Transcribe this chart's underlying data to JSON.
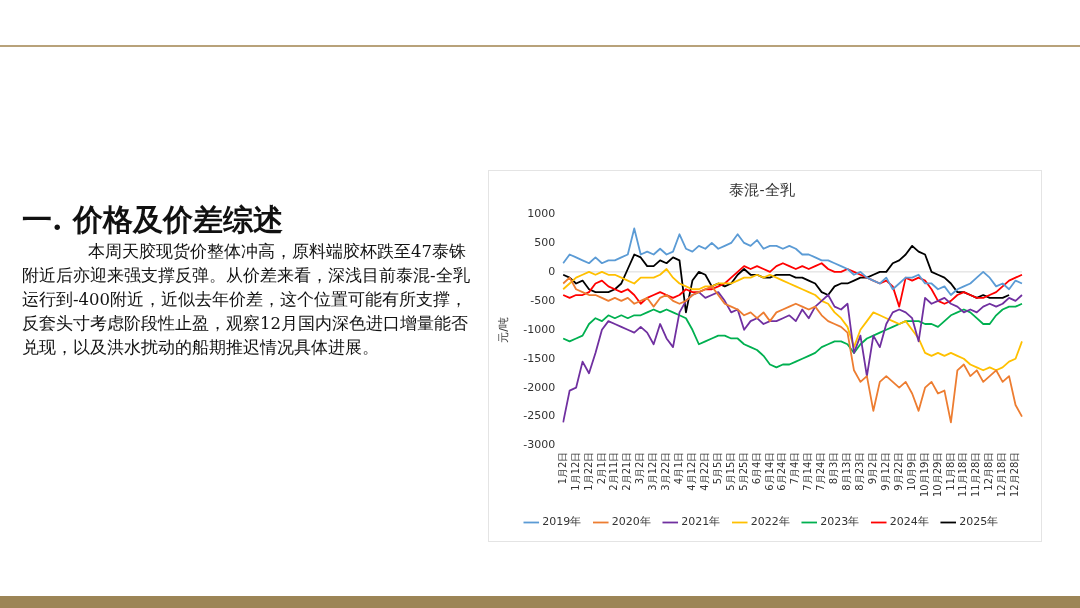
{
  "chart_data": {
    "type": "line",
    "title": "泰混-全乳",
    "ylabel": "元/吨",
    "annotations": [
      "一. 价格及价差综述",
      "本周天胶现货价整体冲高，原料端胶杯跌至47泰铢附近后亦迎来强支撑反弹。从价差来看，深浅目前泰混-全乳运行到-400附近，近似去年价差，这个位置可能有所支撑，反套头寸考虑阶段性止盈，观察12月国内深色进口增量能否兑现，以及洪水扰动的船期推迟情况具体进展。"
    ],
    "categories": [
      "1月2日",
      null,
      "1月12日",
      null,
      "1月22日",
      null,
      "2月1日",
      null,
      "2月11日",
      null,
      "2月21日",
      null,
      "3月2日",
      null,
      "3月12日",
      null,
      "3月22日",
      null,
      "4月1日",
      null,
      "4月12日",
      null,
      "4月22日",
      null,
      "5月5日",
      null,
      "5月15日",
      null,
      "5月25日",
      null,
      "6月4日",
      null,
      "6月14日",
      null,
      "6月24日",
      null,
      "7月4日",
      null,
      "7月14日",
      null,
      "7月24日",
      null,
      "8月3日",
      null,
      "8月13日",
      null,
      "8月23日",
      null,
      "9月2日",
      null,
      "9月12日",
      null,
      "9月22日",
      null,
      "10月9日",
      null,
      "10月19日",
      null,
      "10月29日",
      null,
      "11月8日",
      null,
      "11月18日",
      null,
      "11月28日",
      null,
      "12月8日",
      null,
      "12月18日",
      null,
      "12月28日",
      null
    ],
    "series": [
      {
        "name": "2019年",
        "color": "#5b9bd5",
        "values": [
          150,
          300,
          250,
          200,
          150,
          250,
          150,
          200,
          200,
          250,
          300,
          750,
          300,
          350,
          300,
          400,
          300,
          350,
          650,
          400,
          350,
          450,
          400,
          500,
          400,
          450,
          500,
          650,
          500,
          450,
          550,
          400,
          450,
          450,
          400,
          450,
          400,
          300,
          300,
          250,
          200,
          200,
          150,
          100,
          50,
          -50,
          0,
          -100,
          -150,
          -200,
          -100,
          -300,
          -200,
          -100,
          -100,
          -50,
          -200,
          -200,
          -300,
          -250,
          -400,
          -300,
          -250,
          -200,
          -100,
          0,
          -100,
          -250,
          -200,
          -300,
          -150,
          -200
        ]
      },
      {
        "name": "2020年",
        "color": "#ed7d31",
        "values": [
          -200,
          -100,
          -300,
          -350,
          -400,
          -400,
          -450,
          -500,
          -450,
          -500,
          -450,
          -550,
          -500,
          -450,
          -600,
          -450,
          -400,
          -500,
          -550,
          -500,
          -400,
          -350,
          -300,
          -250,
          -400,
          -550,
          -600,
          -650,
          -750,
          -700,
          -800,
          -700,
          -850,
          -700,
          -650,
          -600,
          -550,
          -600,
          -650,
          -600,
          -750,
          -850,
          -900,
          -950,
          -1050,
          -1700,
          -1900,
          -1800,
          -2400,
          -1900,
          -1800,
          -1900,
          -2000,
          -1900,
          -2100,
          -2400,
          -2000,
          -1900,
          -2100,
          -2050,
          -2600,
          -1700,
          -1600,
          -1800,
          -1700,
          -1900,
          -1800,
          -1700,
          -1900,
          -1800,
          -2300,
          -2500
        ]
      },
      {
        "name": "2021年",
        "color": "#7030a0",
        "values": [
          -2600,
          -2050,
          -2000,
          -1550,
          -1750,
          -1400,
          -1000,
          -850,
          -900,
          -950,
          -1000,
          -1050,
          -950,
          -1050,
          -1250,
          -900,
          -1150,
          -1300,
          -700,
          -500,
          -400,
          -350,
          -450,
          -400,
          -350,
          -500,
          -700,
          -650,
          -1000,
          -850,
          -800,
          -900,
          -850,
          -850,
          -800,
          -750,
          -850,
          -650,
          -800,
          -600,
          -500,
          -400,
          -600,
          -650,
          -550,
          -1400,
          -1100,
          -1800,
          -1100,
          -1300,
          -900,
          -700,
          -650,
          -700,
          -800,
          -1200,
          -450,
          -550,
          -500,
          -450,
          -550,
          -600,
          -700,
          -650,
          -700,
          -600,
          -550,
          -600,
          -550,
          -450,
          -500,
          -400
        ]
      },
      {
        "name": "2022年",
        "color": "#ffc000",
        "values": [
          -300,
          -200,
          -100,
          -50,
          0,
          -50,
          0,
          -50,
          -50,
          -100,
          -150,
          -200,
          -100,
          -100,
          -100,
          -50,
          50,
          -100,
          -200,
          -250,
          -300,
          -300,
          -250,
          -250,
          -200,
          -200,
          -200,
          -150,
          -100,
          -100,
          -50,
          -100,
          -50,
          -100,
          -150,
          -200,
          -250,
          -300,
          -350,
          -400,
          -500,
          -550,
          -700,
          -800,
          -950,
          -1300,
          -1000,
          -850,
          -700,
          -750,
          -800,
          -850,
          -900,
          -850,
          -1000,
          -1150,
          -1400,
          -1450,
          -1400,
          -1450,
          -1400,
          -1450,
          -1500,
          -1600,
          -1650,
          -1700,
          -1650,
          -1700,
          -1650,
          -1550,
          -1500,
          -1200
        ]
      },
      {
        "name": "2023年",
        "color": "#00b050",
        "values": [
          -1150,
          -1200,
          -1150,
          -1100,
          -900,
          -800,
          -850,
          -750,
          -800,
          -750,
          -800,
          -750,
          -750,
          -700,
          -650,
          -700,
          -650,
          -700,
          -750,
          -800,
          -1000,
          -1250,
          -1200,
          -1150,
          -1100,
          -1100,
          -1150,
          -1150,
          -1250,
          -1300,
          -1350,
          -1450,
          -1600,
          -1650,
          -1600,
          -1600,
          -1550,
          -1500,
          -1450,
          -1400,
          -1300,
          -1250,
          -1200,
          -1200,
          -1250,
          -1400,
          -1250,
          -1150,
          -1100,
          -1050,
          -1000,
          -950,
          -900,
          -850,
          -850,
          -850,
          -900,
          -900,
          -950,
          -850,
          -750,
          -700,
          -650,
          -700,
          -800,
          -900,
          -900,
          -750,
          -650,
          -600,
          -600,
          -550
        ]
      },
      {
        "name": "2024年",
        "color": "#ff0000",
        "values": [
          -400,
          -450,
          -400,
          -400,
          -350,
          -200,
          -150,
          -250,
          -300,
          -350,
          -300,
          -400,
          -550,
          -450,
          -400,
          -350,
          -400,
          -450,
          -400,
          -300,
          -350,
          -350,
          -300,
          -300,
          -250,
          -200,
          -100,
          0,
          100,
          50,
          100,
          50,
          0,
          100,
          150,
          100,
          50,
          100,
          50,
          100,
          150,
          50,
          0,
          0,
          50,
          0,
          -50,
          -100,
          -150,
          -200,
          -150,
          -250,
          -600,
          -100,
          -150,
          -100,
          -150,
          -300,
          -500,
          -550,
          -500,
          -400,
          -350,
          -400,
          -450,
          -450,
          -400,
          -350,
          -250,
          -150,
          -100,
          -50
        ]
      },
      {
        "name": "2025年",
        "color": "#000000",
        "values": [
          -50,
          -100,
          -200,
          -150,
          -300,
          -350,
          -350,
          -350,
          -300,
          -200,
          50,
          300,
          250,
          100,
          100,
          200,
          150,
          250,
          200,
          -700,
          -150,
          0,
          -50,
          -250,
          -200,
          -250,
          -200,
          -50,
          50,
          -50,
          -50,
          -100,
          -100,
          -50,
          -50,
          -50,
          -100,
          -100,
          -150,
          -200,
          -350,
          -400,
          -250,
          -200,
          -200,
          -150,
          -100,
          -100,
          -50,
          0,
          0,
          150,
          200,
          300,
          450,
          350,
          300,
          0,
          -50,
          -100,
          -200,
          -350,
          -350,
          -400,
          -450,
          -400,
          -450,
          -450,
          -450,
          -400,
          null,
          null
        ]
      }
    ],
    "ylim": [
      -3000,
      1000
    ],
    "yticks": [
      -3000,
      -2500,
      -2000,
      -1500,
      -1000,
      -500,
      0,
      500,
      1000
    ],
    "ref_lines": [
      {
        "axis": "y",
        "value": 0,
        "color": "#d9d9d9"
      }
    ],
    "grid": false,
    "legend": "bottom",
    "marker": "none",
    "line_style": "solid"
  }
}
